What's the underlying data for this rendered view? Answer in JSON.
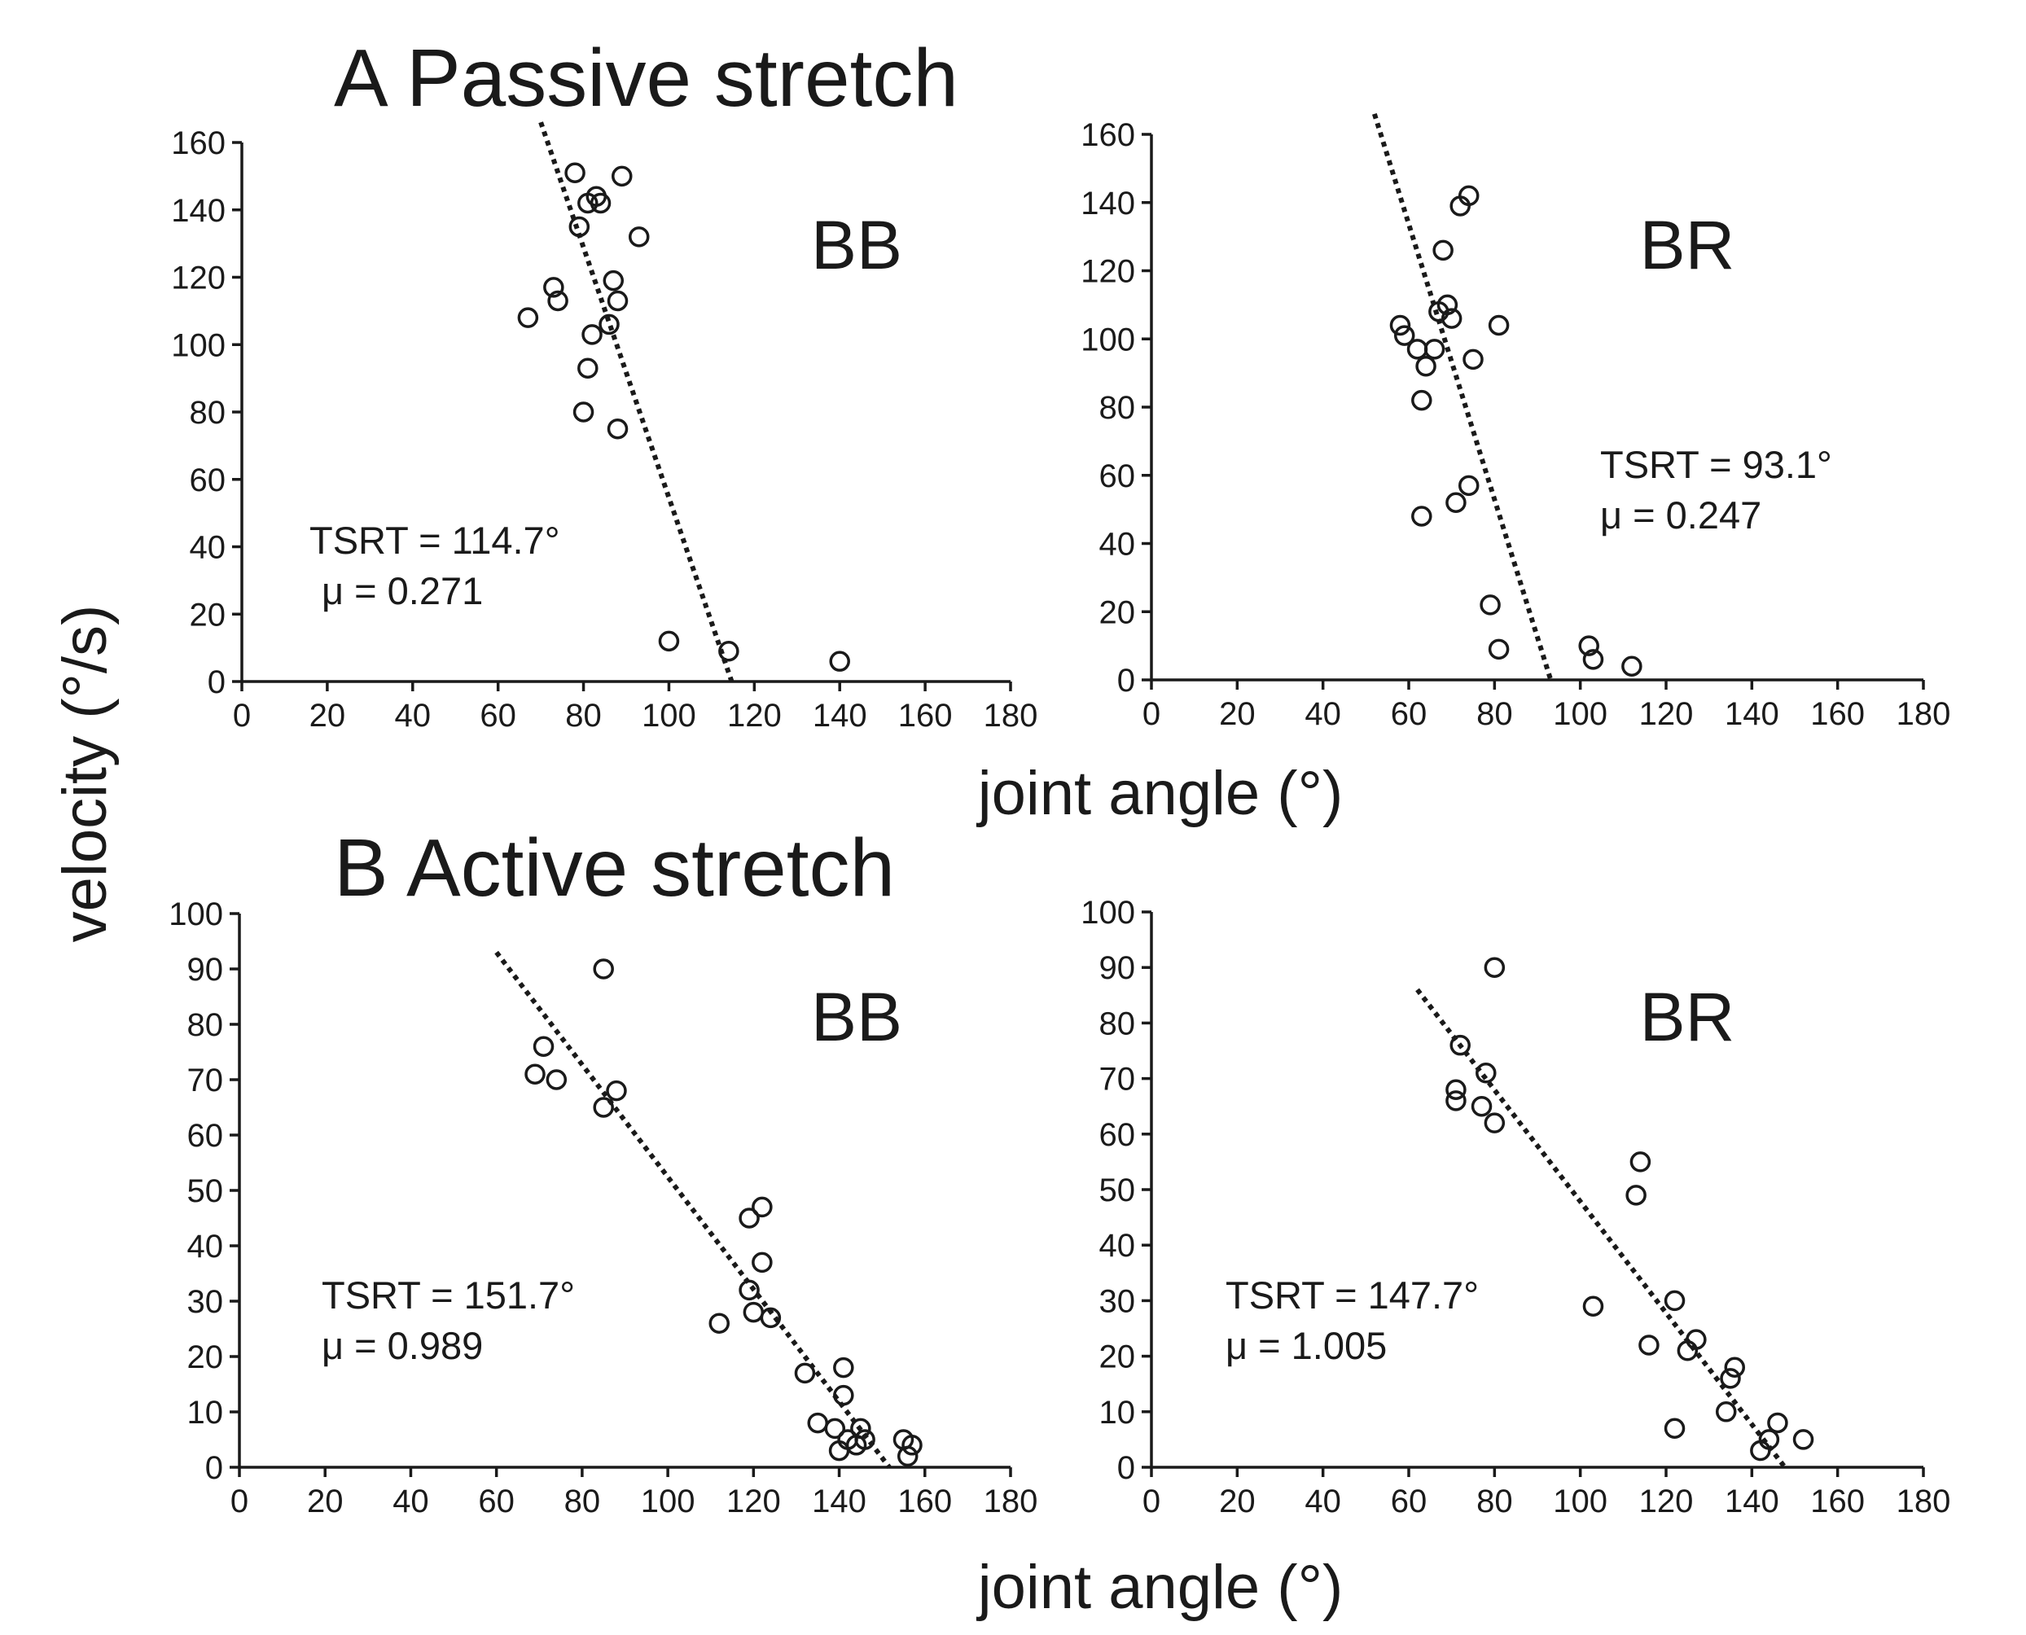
{
  "figure": {
    "title_a": "A Passive stretch",
    "title_b": "B Active stretch",
    "ylabel": "velocity  (°/s)",
    "xlabel": "joint angle (°)"
  },
  "chart_data": [
    {
      "type": "scatter",
      "panel": "A Passive stretch",
      "label": "BB",
      "xlim": [
        0,
        180
      ],
      "ylim": [
        0,
        160
      ],
      "xticks": [
        "0",
        "20",
        "40",
        "60",
        "80",
        "100",
        "120",
        "140",
        "160",
        "180"
      ],
      "yticks": [
        "0",
        "20",
        "40",
        "60",
        "80",
        "100",
        "120",
        "140",
        "160"
      ],
      "annotation": [
        "TSRT = 114.7°",
        "μ = 0.271"
      ],
      "fit_line": [
        [
          70,
          166
        ],
        [
          114.7,
          0
        ]
      ],
      "points": [
        [
          78,
          151
        ],
        [
          89,
          150
        ],
        [
          83,
          144
        ],
        [
          81,
          142
        ],
        [
          84,
          142
        ],
        [
          79,
          135
        ],
        [
          93,
          132
        ],
        [
          87,
          119
        ],
        [
          73,
          117
        ],
        [
          74,
          113
        ],
        [
          88,
          113
        ],
        [
          67,
          108
        ],
        [
          86,
          106
        ],
        [
          82,
          103
        ],
        [
          81,
          93
        ],
        [
          80,
          80
        ],
        [
          88,
          75
        ],
        [
          100,
          12
        ],
        [
          114,
          9
        ],
        [
          140,
          6
        ]
      ]
    },
    {
      "type": "scatter",
      "panel": "A Passive stretch",
      "label": "BR",
      "xlim": [
        0,
        180
      ],
      "ylim": [
        0,
        160
      ],
      "xticks": [
        "0",
        "20",
        "40",
        "60",
        "80",
        "100",
        "120",
        "140",
        "160",
        "180"
      ],
      "yticks": [
        "0",
        "20",
        "40",
        "60",
        "80",
        "100",
        "120",
        "140",
        "160"
      ],
      "annotation": [
        "TSRT = 93.1°",
        "μ =  0.247"
      ],
      "fit_line": [
        [
          52,
          166
        ],
        [
          93.1,
          0
        ]
      ],
      "points": [
        [
          74,
          142
        ],
        [
          72,
          139
        ],
        [
          68,
          126
        ],
        [
          69,
          110
        ],
        [
          67,
          108
        ],
        [
          70,
          106
        ],
        [
          81,
          104
        ],
        [
          58,
          104
        ],
        [
          59,
          101
        ],
        [
          62,
          97
        ],
        [
          66,
          97
        ],
        [
          64,
          92
        ],
        [
          75,
          94
        ],
        [
          63,
          82
        ],
        [
          74,
          57
        ],
        [
          71,
          52
        ],
        [
          63,
          48
        ],
        [
          79,
          22
        ],
        [
          81,
          9
        ],
        [
          102,
          10
        ],
        [
          103,
          6
        ],
        [
          112,
          4
        ]
      ]
    },
    {
      "type": "scatter",
      "panel": "B Active stretch",
      "label": "BB",
      "xlim": [
        0,
        180
      ],
      "ylim": [
        0,
        100
      ],
      "xticks": [
        "0",
        "20",
        "40",
        "60",
        "80",
        "100",
        "120",
        "140",
        "160",
        "180"
      ],
      "yticks": [
        "0",
        "10",
        "20",
        "30",
        "40",
        "50",
        "60",
        "70",
        "80",
        "90",
        "100"
      ],
      "annotation": [
        "TSRT = 151.7°",
        "μ = 0.989"
      ],
      "fit_line": [
        [
          60,
          93
        ],
        [
          151.7,
          0
        ]
      ],
      "points": [
        [
          85,
          90
        ],
        [
          71,
          76
        ],
        [
          69,
          71
        ],
        [
          74,
          70
        ],
        [
          88,
          68
        ],
        [
          85,
          65
        ],
        [
          122,
          47
        ],
        [
          119,
          45
        ],
        [
          122,
          37
        ],
        [
          119,
          32
        ],
        [
          120,
          28
        ],
        [
          124,
          27
        ],
        [
          112,
          26
        ],
        [
          132,
          17
        ],
        [
          141,
          18
        ],
        [
          141,
          13
        ],
        [
          135,
          8
        ],
        [
          139,
          7
        ],
        [
          145,
          7
        ],
        [
          142,
          5
        ],
        [
          144,
          4
        ],
        [
          140,
          3
        ],
        [
          146,
          5
        ],
        [
          155,
          5
        ],
        [
          157,
          4
        ],
        [
          156,
          2
        ]
      ]
    },
    {
      "type": "scatter",
      "panel": "B Active stretch",
      "label": "BR",
      "xlim": [
        0,
        180
      ],
      "ylim": [
        0,
        100
      ],
      "xticks": [
        "0",
        "20",
        "40",
        "60",
        "80",
        "100",
        "120",
        "140",
        "160",
        "180"
      ],
      "yticks": [
        "0",
        "10",
        "20",
        "30",
        "40",
        "50",
        "60",
        "70",
        "80",
        "90",
        "100"
      ],
      "annotation": [
        "TSRT = 147.7°",
        "μ =  1.005"
      ],
      "fit_line": [
        [
          62,
          86
        ],
        [
          147.7,
          0
        ]
      ],
      "points": [
        [
          80,
          90
        ],
        [
          72,
          76
        ],
        [
          78,
          71
        ],
        [
          71,
          68
        ],
        [
          71,
          66
        ],
        [
          77,
          65
        ],
        [
          80,
          62
        ],
        [
          114,
          55
        ],
        [
          113,
          49
        ],
        [
          103,
          29
        ],
        [
          122,
          30
        ],
        [
          127,
          23
        ],
        [
          116,
          22
        ],
        [
          125,
          21
        ],
        [
          136,
          18
        ],
        [
          135,
          16
        ],
        [
          134,
          10
        ],
        [
          122,
          7
        ],
        [
          146,
          8
        ],
        [
          144,
          5
        ],
        [
          142,
          3
        ],
        [
          152,
          5
        ]
      ]
    }
  ]
}
